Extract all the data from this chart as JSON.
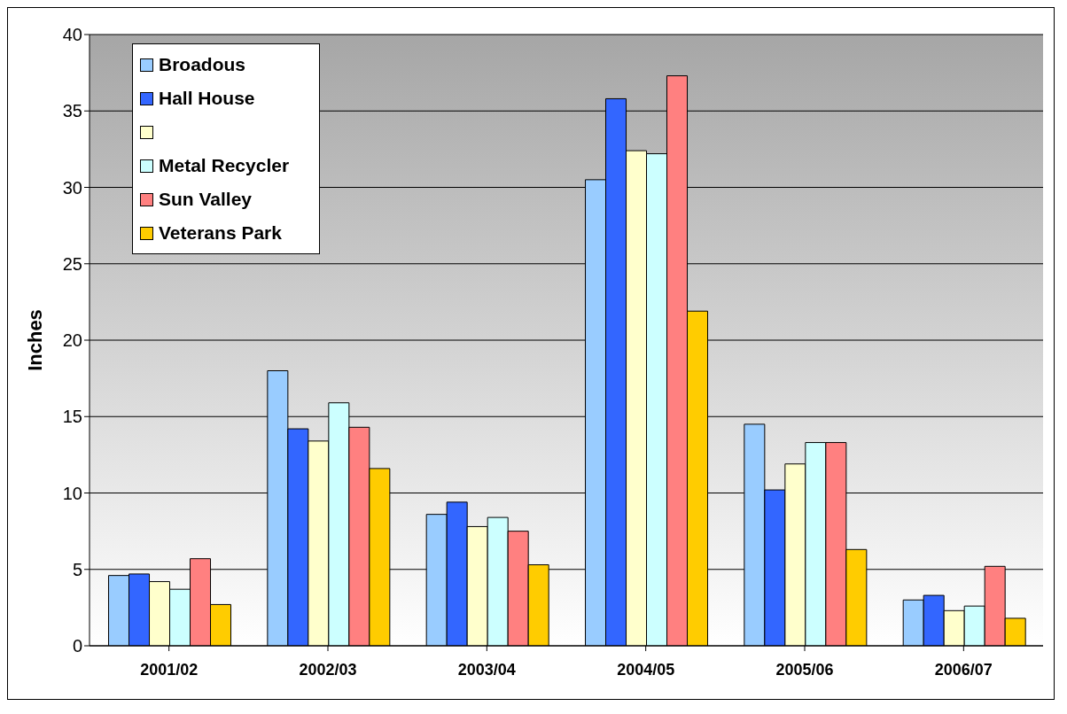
{
  "chart_data": {
    "type": "bar",
    "ylabel": "Inches",
    "categories": [
      "2001/02",
      "2002/03",
      "2003/04",
      "2004/05",
      "2005/06",
      "2006/07"
    ],
    "series": [
      {
        "name": "Broadous",
        "color": "#99ccff",
        "values": [
          4.6,
          18.0,
          8.6,
          30.5,
          14.5,
          3.0
        ]
      },
      {
        "name": "Hall House",
        "color": "#3366ff",
        "values": [
          4.7,
          14.2,
          9.4,
          35.8,
          10.2,
          3.3
        ]
      },
      {
        "color": "#ffffcc",
        "values": [
          4.2,
          13.4,
          7.8,
          32.4,
          11.9,
          2.3
        ]
      },
      {
        "name": "Metal Recycler",
        "color": "#ccffff",
        "values": [
          3.7,
          15.9,
          8.4,
          32.2,
          13.3,
          2.6
        ]
      },
      {
        "name": "Sun Valley",
        "color": "#ff8080",
        "values": [
          5.7,
          14.3,
          7.5,
          37.3,
          13.3,
          5.2
        ]
      },
      {
        "name": "Veterans Park",
        "color": "#ffcc00",
        "values": [
          2.7,
          11.6,
          5.3,
          21.9,
          6.3,
          1.8
        ]
      }
    ],
    "ylim": [
      0,
      40
    ],
    "yticks": [
      0,
      5,
      10,
      15,
      20,
      25,
      30,
      35,
      40
    ],
    "grid": "y",
    "legend": "top left"
  }
}
